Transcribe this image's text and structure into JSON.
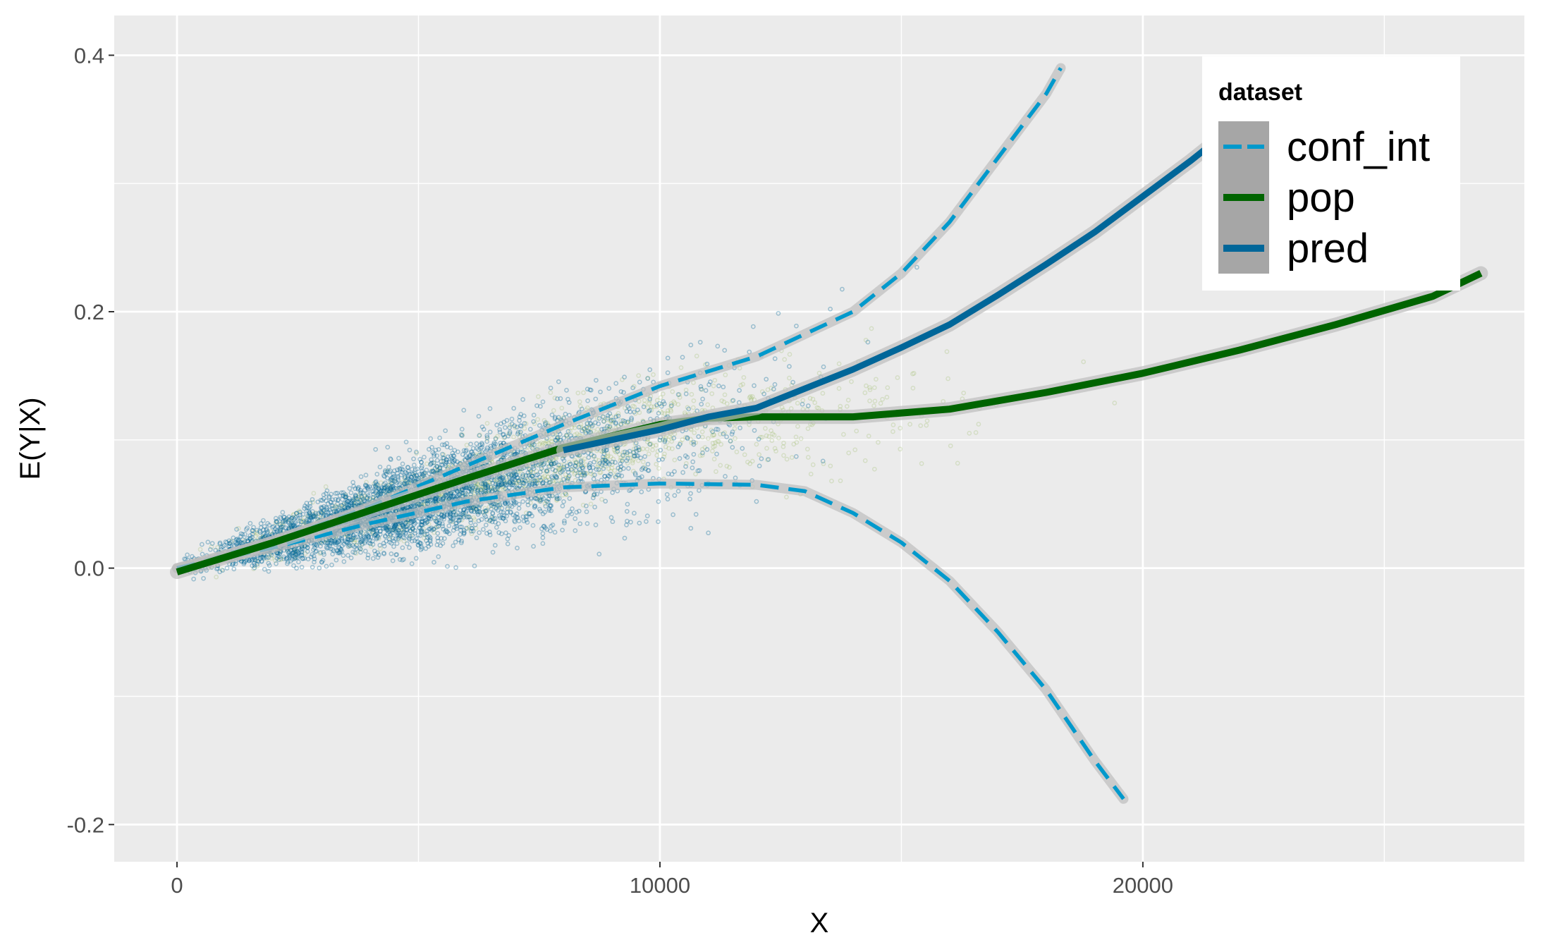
{
  "chart_data": {
    "type": "scatter",
    "xlabel": "X",
    "ylabel": "E(Y|X)",
    "xlim": [
      -1300,
      27900
    ],
    "ylim": [
      -0.229,
      0.431
    ],
    "x_ticks": [
      {
        "value": 0,
        "label": "0"
      },
      {
        "value": 10000,
        "label": "10000"
      },
      {
        "value": 20000,
        "label": "20000"
      }
    ],
    "x_minor": [
      5000,
      15000,
      25000
    ],
    "y_ticks": [
      {
        "value": -0.2,
        "label": "-0.2"
      },
      {
        "value": 0.0,
        "label": "0.0"
      },
      {
        "value": 0.2,
        "label": "0.2"
      },
      {
        "value": 0.4,
        "label": "0.4"
      }
    ],
    "y_minor": [
      -0.1,
      0.1,
      0.3
    ],
    "grid": true,
    "panel_background": "#ebebeb",
    "legend": {
      "title": "dataset",
      "placement": "top-right",
      "entries": [
        {
          "label": "conf_int",
          "color": "#0099cc",
          "dashed": true
        },
        {
          "label": "pop",
          "color": "#006400",
          "dashed": false
        },
        {
          "label": "pred",
          "color": "#006699",
          "dashed": false
        }
      ]
    },
    "series": [
      {
        "name": "conf_int",
        "kind": "line",
        "color": "#0099cc",
        "dashed": true,
        "x": [
          0,
          2000,
          4000,
          6000,
          8000,
          10000,
          12000,
          14000,
          15000,
          16000,
          17000,
          18000,
          18300
        ],
        "y": [
          0.0,
          0.021,
          0.048,
          0.08,
          0.112,
          0.142,
          0.165,
          0.2,
          0.23,
          0.27,
          0.32,
          0.37,
          0.39
        ]
      },
      {
        "name": "conf_int",
        "kind": "line",
        "color": "#0099cc",
        "dashed": true,
        "x": [
          0,
          2000,
          4000,
          6000,
          8000,
          10000,
          12000,
          13000,
          14000,
          15000,
          16000,
          17000,
          18000,
          19000,
          19600
        ],
        "y": [
          0.0,
          0.016,
          0.035,
          0.052,
          0.063,
          0.066,
          0.065,
          0.06,
          0.043,
          0.02,
          -0.01,
          -0.05,
          -0.095,
          -0.15,
          -0.18
        ]
      },
      {
        "name": "pop",
        "kind": "line",
        "color": "#006400",
        "dashed": false,
        "x": [
          0,
          2000,
          4000,
          6000,
          8000,
          10000,
          11000,
          12000,
          14000,
          16000,
          18000,
          20000,
          22000,
          24000,
          26000,
          27000
        ],
        "y": [
          -0.003,
          0.02,
          0.045,
          0.07,
          0.094,
          0.112,
          0.117,
          0.118,
          0.118,
          0.124,
          0.137,
          0.152,
          0.17,
          0.19,
          0.212,
          0.23
        ]
      },
      {
        "name": "pred",
        "kind": "line",
        "color": "#006699",
        "dashed": false,
        "x": [
          8000,
          10000,
          11000,
          12000,
          13000,
          14000,
          15000,
          16000,
          17000,
          18000,
          19000,
          20000,
          21000,
          22000,
          22500
        ],
        "y": [
          0.092,
          0.108,
          0.118,
          0.125,
          0.14,
          0.155,
          0.172,
          0.19,
          0.213,
          0.237,
          0.262,
          0.29,
          0.318,
          0.348,
          0.365
        ]
      },
      {
        "name": "pred",
        "kind": "scatter",
        "color": "#006699",
        "description_range_x": [
          0,
          22000
        ]
      },
      {
        "name": "pop",
        "kind": "scatter",
        "color": "#99bb66",
        "description_range_x": [
          0,
          27000
        ]
      }
    ]
  }
}
